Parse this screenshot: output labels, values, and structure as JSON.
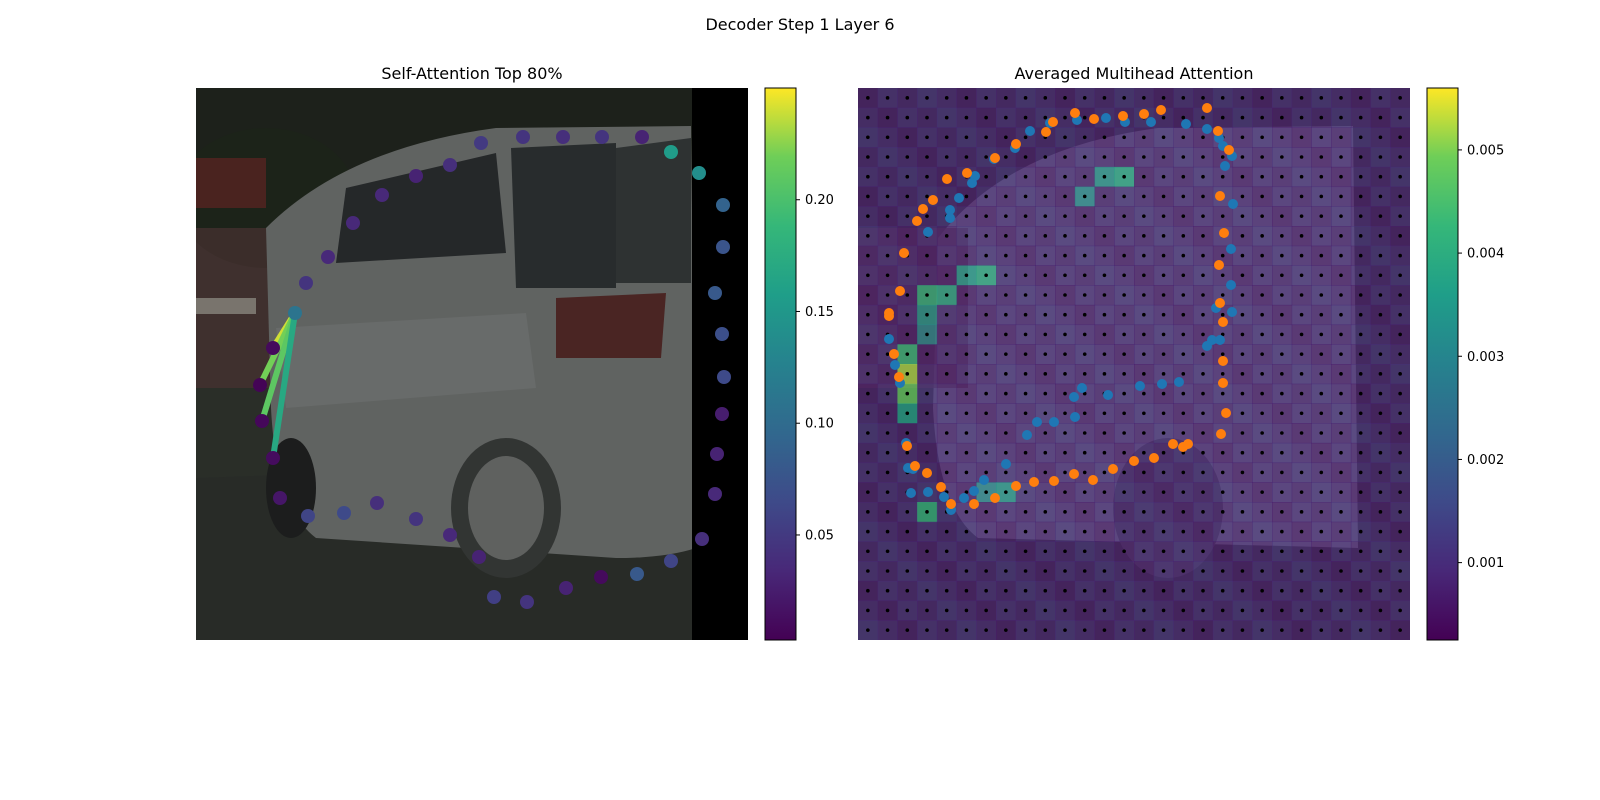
{
  "figure": {
    "title": "Decoder Step 1 Layer 6"
  },
  "chart_data": [
    {
      "type": "scatter",
      "title": "Self-Attention Top 80%",
      "background": "photo of a silver minivan (street scene), black band on right edge",
      "colormap": "viridis",
      "colorbar": {
        "min": 0.003,
        "max": 0.25,
        "ticks": [
          0.05,
          0.1,
          0.15,
          0.2
        ],
        "tick_labels": [
          "0.05",
          "0.10",
          "0.15",
          "0.20"
        ]
      },
      "query_point": [
        99,
        225
      ],
      "points": [
        {
          "x": 99,
          "y": 225,
          "value": 0.11
        },
        {
          "x": 77,
          "y": 260,
          "value": 0.01
        },
        {
          "x": 64,
          "y": 297,
          "value": 0.005
        },
        {
          "x": 66,
          "y": 333,
          "value": 0.008
        },
        {
          "x": 77,
          "y": 370,
          "value": 0.012
        },
        {
          "x": 84,
          "y": 410,
          "value": 0.02
        },
        {
          "x": 112,
          "y": 428,
          "value": 0.06
        },
        {
          "x": 148,
          "y": 425,
          "value": 0.065
        },
        {
          "x": 181,
          "y": 415,
          "value": 0.04
        },
        {
          "x": 220,
          "y": 431,
          "value": 0.045
        },
        {
          "x": 254,
          "y": 447,
          "value": 0.035
        },
        {
          "x": 283,
          "y": 469,
          "value": 0.03
        },
        {
          "x": 298,
          "y": 509,
          "value": 0.055
        },
        {
          "x": 331,
          "y": 514,
          "value": 0.045
        },
        {
          "x": 370,
          "y": 500,
          "value": 0.03
        },
        {
          "x": 405,
          "y": 489,
          "value": 0.01
        },
        {
          "x": 441,
          "y": 486,
          "value": 0.08
        },
        {
          "x": 475,
          "y": 473,
          "value": 0.06
        },
        {
          "x": 506,
          "y": 451,
          "value": 0.04
        },
        {
          "x": 519,
          "y": 406,
          "value": 0.035
        },
        {
          "x": 521,
          "y": 366,
          "value": 0.03
        },
        {
          "x": 526,
          "y": 326,
          "value": 0.025
        },
        {
          "x": 528,
          "y": 289,
          "value": 0.065
        },
        {
          "x": 526,
          "y": 246,
          "value": 0.07
        },
        {
          "x": 519,
          "y": 205,
          "value": 0.08
        },
        {
          "x": 527,
          "y": 159,
          "value": 0.075
        },
        {
          "x": 527,
          "y": 117,
          "value": 0.09
        },
        {
          "x": 503,
          "y": 85,
          "value": 0.14
        },
        {
          "x": 475,
          "y": 64,
          "value": 0.155
        },
        {
          "x": 446,
          "y": 49,
          "value": 0.03
        },
        {
          "x": 406,
          "y": 49,
          "value": 0.045
        },
        {
          "x": 367,
          "y": 49,
          "value": 0.04
        },
        {
          "x": 327,
          "y": 49,
          "value": 0.045
        },
        {
          "x": 285,
          "y": 55,
          "value": 0.05
        },
        {
          "x": 254,
          "y": 77,
          "value": 0.04
        },
        {
          "x": 220,
          "y": 88,
          "value": 0.03
        },
        {
          "x": 186,
          "y": 107,
          "value": 0.035
        },
        {
          "x": 157,
          "y": 135,
          "value": 0.035
        },
        {
          "x": 132,
          "y": 169,
          "value": 0.035
        },
        {
          "x": 110,
          "y": 195,
          "value": 0.045
        }
      ],
      "attention_edges": [
        {
          "to": [
            77,
            260
          ],
          "value": 0.24
        },
        {
          "to": [
            64,
            297
          ],
          "value": 0.22
        },
        {
          "to": [
            66,
            333
          ],
          "value": 0.21
        },
        {
          "to": [
            77,
            370
          ],
          "value": 0.17
        }
      ]
    },
    {
      "type": "heatmap",
      "title": "Averaged Multihead Attention",
      "background": "same minivan photo",
      "colormap": "viridis",
      "colorbar": {
        "min": 0.00025,
        "max": 0.0056,
        "ticks": [
          0.001,
          0.002,
          0.003,
          0.004,
          0.005
        ],
        "tick_labels": [
          "0.001",
          "0.002",
          "0.003",
          "0.004",
          "0.005"
        ]
      },
      "grid": {
        "cols": 28,
        "rows": 28
      },
      "hot_cells": [
        {
          "col": 2,
          "row": 14,
          "value": 0.0052
        },
        {
          "col": 2,
          "row": 15,
          "value": 0.0048
        },
        {
          "col": 2,
          "row": 16,
          "value": 0.0036
        },
        {
          "col": 2,
          "row": 13,
          "value": 0.0042
        },
        {
          "col": 3,
          "row": 21,
          "value": 0.0041
        },
        {
          "col": 3,
          "row": 10,
          "value": 0.0041
        },
        {
          "col": 4,
          "row": 10,
          "value": 0.0038
        },
        {
          "col": 6,
          "row": 9,
          "value": 0.0039
        },
        {
          "col": 5,
          "row": 9,
          "value": 0.0035
        },
        {
          "col": 13,
          "row": 4,
          "value": 0.0038
        },
        {
          "col": 12,
          "row": 4,
          "value": 0.0033
        },
        {
          "col": 3,
          "row": 11,
          "value": 0.0034
        },
        {
          "col": 7,
          "row": 20,
          "value": 0.0034
        },
        {
          "col": 6,
          "row": 20,
          "value": 0.003
        },
        {
          "col": 11,
          "row": 5,
          "value": 0.0031
        },
        {
          "col": 3,
          "row": 12,
          "value": 0.003
        }
      ],
      "series": [
        {
          "name": "",
          "color": "#1f77b4",
          "points": [
            [
              31,
              251
            ],
            [
              37,
              277
            ],
            [
              42,
              295
            ],
            [
              48,
              355
            ],
            [
              50,
              380
            ],
            [
              55,
              381
            ],
            [
              53,
              405
            ],
            [
              70,
              404
            ],
            [
              86,
              409
            ],
            [
              93,
              422
            ],
            [
              106,
              410
            ],
            [
              116,
              403
            ],
            [
              126,
              392
            ],
            [
              148,
              376
            ],
            [
              169,
              347
            ],
            [
              179,
              334
            ],
            [
              196,
              334
            ],
            [
              217,
              329
            ],
            [
              216,
              309
            ],
            [
              224,
              300
            ],
            [
              250,
              307
            ],
            [
              282,
              298
            ],
            [
              304,
              296
            ],
            [
              321,
              294
            ],
            [
              349,
              258
            ],
            [
              354,
              252
            ],
            [
              362,
              252
            ],
            [
              358,
              220
            ],
            [
              374,
              224
            ],
            [
              373,
              197
            ],
            [
              373,
              161
            ],
            [
              375,
              116
            ],
            [
              367,
              78
            ],
            [
              374,
              68
            ],
            [
              365,
              58
            ],
            [
              361,
              50
            ],
            [
              349,
              41
            ],
            [
              328,
              36
            ],
            [
              293,
              34
            ],
            [
              267,
              34
            ],
            [
              248,
              30
            ],
            [
              219,
              32
            ],
            [
              192,
              35
            ],
            [
              172,
              43
            ],
            [
              157,
              60
            ],
            [
              136,
              71
            ],
            [
              117,
              88
            ],
            [
              114,
              95
            ],
            [
              101,
              110
            ],
            [
              92,
              122
            ],
            [
              92,
              130
            ],
            [
              70,
              144
            ]
          ]
        },
        {
          "name": "",
          "color": "#ff7f0e",
          "points": [
            [
              31,
              228
            ],
            [
              36,
              266
            ],
            [
              41,
              289
            ],
            [
              49,
              358
            ],
            [
              57,
              378
            ],
            [
              69,
              385
            ],
            [
              83,
              399
            ],
            [
              93,
              416
            ],
            [
              116,
              416
            ],
            [
              137,
              410
            ],
            [
              158,
              398
            ],
            [
              176,
              394
            ],
            [
              196,
              393
            ],
            [
              216,
              386
            ],
            [
              235,
              392
            ],
            [
              255,
              381
            ],
            [
              276,
              373
            ],
            [
              296,
              370
            ],
            [
              315,
              356
            ],
            [
              325,
              359
            ],
            [
              330,
              356
            ],
            [
              363,
              346
            ],
            [
              368,
              325
            ],
            [
              365,
              295
            ],
            [
              365,
              273
            ],
            [
              365,
              234
            ],
            [
              362,
              215
            ],
            [
              361,
              177
            ],
            [
              366,
              145
            ],
            [
              362,
              108
            ],
            [
              371,
              62
            ],
            [
              360,
              43
            ],
            [
              349,
              20
            ],
            [
              303,
              22
            ],
            [
              286,
              26
            ],
            [
              265,
              28
            ],
            [
              236,
              31
            ],
            [
              217,
              25
            ],
            [
              195,
              34
            ],
            [
              188,
              44
            ],
            [
              158,
              56
            ],
            [
              137,
              70
            ],
            [
              109,
              85
            ],
            [
              89,
              91
            ],
            [
              75,
              112
            ],
            [
              65,
              121
            ],
            [
              59,
              133
            ],
            [
              46,
              165
            ],
            [
              42,
              203
            ],
            [
              31,
              225
            ]
          ]
        }
      ]
    }
  ]
}
